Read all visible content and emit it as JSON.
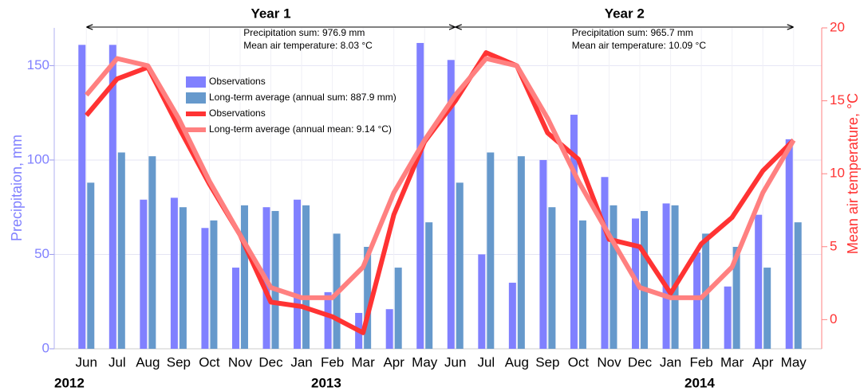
{
  "chart_data": {
    "type": "bar",
    "categories": [
      "Jun",
      "Jul",
      "Aug",
      "Sep",
      "Oct",
      "Nov",
      "Dec",
      "Jan",
      "Feb",
      "Mar",
      "Apr",
      "May",
      "Jun",
      "Jul",
      "Aug",
      "Sep",
      "Oct",
      "Nov",
      "Dec",
      "Jan",
      "Feb",
      "Mar",
      "Apr",
      "May"
    ],
    "series": [
      {
        "name": "Observations",
        "type": "bar",
        "color": "#8080ff",
        "values": [
          161,
          161,
          79,
          80,
          64,
          43,
          75,
          79,
          30,
          19,
          21,
          162,
          153,
          50,
          35,
          100,
          124,
          91,
          69,
          77,
          51,
          33,
          71,
          111
        ]
      },
      {
        "name": "Long-term average (annual sum: 887.9 mm)",
        "type": "bar",
        "color": "#6699cc",
        "values": [
          88,
          104,
          102,
          75,
          68,
          76,
          73,
          76,
          61,
          54,
          43,
          67,
          88,
          104,
          102,
          75,
          68,
          76,
          73,
          76,
          61,
          54,
          43,
          67
        ]
      },
      {
        "name": "Observations",
        "type": "line",
        "axis": "y2",
        "color": "#ff3333",
        "values": [
          14.0,
          16.5,
          17.3,
          13.2,
          9.3,
          5.8,
          1.2,
          0.9,
          0.2,
          -0.9,
          7.2,
          12.2,
          15.0,
          18.3,
          17.4,
          12.8,
          11.0,
          5.5,
          5.0,
          1.8,
          5.2,
          7.0,
          10.2,
          12.3
        ]
      },
      {
        "name": "Long-term average (annual mean: 9.14 °C)",
        "type": "line",
        "axis": "y2",
        "color": "#ff8080",
        "values": [
          15.4,
          17.9,
          17.4,
          13.8,
          9.5,
          5.8,
          2.2,
          1.5,
          1.5,
          3.6,
          8.7,
          12.3,
          15.4,
          17.9,
          17.4,
          13.8,
          9.5,
          5.8,
          2.2,
          1.5,
          1.5,
          3.6,
          8.7,
          12.3
        ]
      }
    ],
    "ylabel": "Precipitaion, mm",
    "y2label": "Mean air temperature, °C",
    "ylim": [
      0,
      170
    ],
    "yticks": [
      0,
      50,
      100,
      150
    ],
    "y2lim": [
      -2,
      20
    ],
    "y2ticks": [
      0,
      5,
      10,
      15,
      20
    ],
    "grid": true,
    "periods": [
      {
        "label": "Year 1",
        "lines": [
          "Precipitation sum: 976.9 mm",
          "Mean air temperature: 8.03 °C"
        ]
      },
      {
        "label": "Year 2",
        "lines": [
          "Precipitation sum: 965.7 mm",
          "Mean air temperature: 10.09 °C"
        ]
      }
    ],
    "years": [
      "2012",
      "2013",
      "2014"
    ]
  }
}
